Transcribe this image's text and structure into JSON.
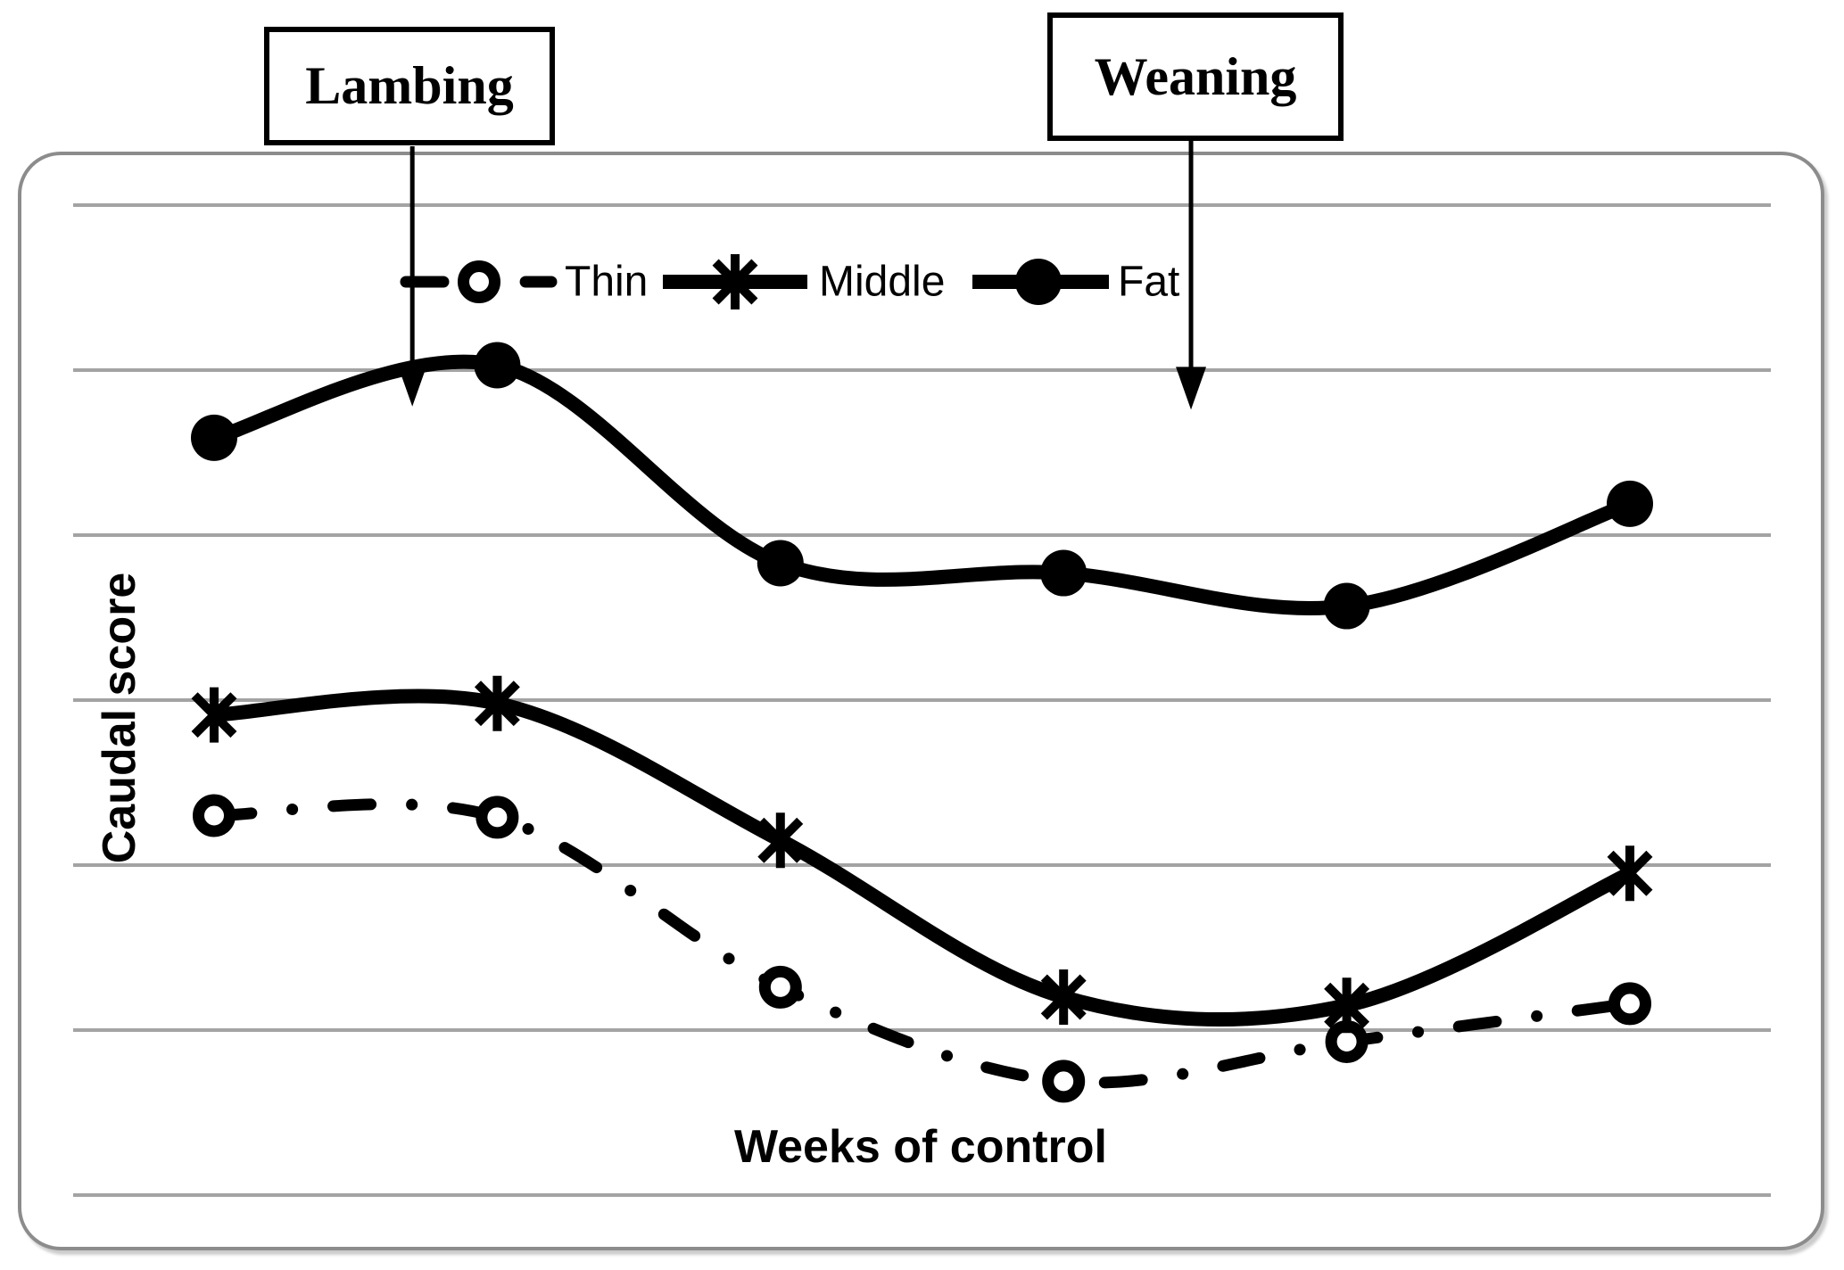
{
  "figure": {
    "type": "statistical-figure",
    "description_visible_elements": "line chart in rounded gray frame with two labeled arrow callouts"
  },
  "annotations": [
    {
      "label": "Lambing",
      "x_week": 1.7,
      "tip_y_score": 4.78
    },
    {
      "label": "Weaning",
      "x_week": 4.45,
      "tip_y_score": 4.76
    }
  ],
  "chart_data": {
    "type": "line",
    "x": [
      1,
      2,
      3,
      4,
      5,
      6
    ],
    "xlabel": "Weeks of control",
    "ylabel": "Caudal score",
    "ylim": [
      0,
      6
    ],
    "x_tick_labels_visible": false,
    "y_tick_labels_visible": false,
    "gridlines": "horizontal",
    "gridlines_y_scores": [
      0,
      1,
      2,
      3,
      4,
      5,
      6
    ],
    "legend_position": "top-center-inside",
    "series": [
      {
        "name": "Thin",
        "line": "dash-dot",
        "marker": "open-circle",
        "values": [
          2.3,
          2.29,
          1.26,
          0.69,
          0.93,
          1.16
        ]
      },
      {
        "name": "Middle",
        "line": "solid",
        "marker": "asterisk",
        "values": [
          2.91,
          2.98,
          2.15,
          1.2,
          1.15,
          1.95
        ]
      },
      {
        "name": "Fat",
        "line": "solid",
        "marker": "filled-circle",
        "values": [
          4.59,
          5.03,
          3.83,
          3.77,
          3.57,
          4.19
        ]
      }
    ]
  },
  "colors": {
    "series_line": "#000000",
    "grid": "#a3a3a3",
    "frame": "#8c8c8c",
    "background": "#ffffff"
  }
}
